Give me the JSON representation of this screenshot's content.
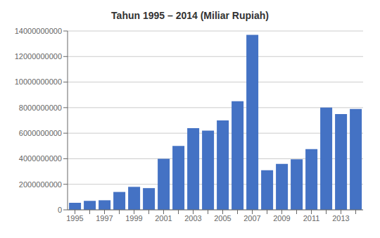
{
  "chart_data": {
    "type": "bar",
    "title": "Tahun 1995 – 2014 (Miliar Rupiah)",
    "categories": [
      "1995",
      null,
      "1997",
      null,
      "1999",
      null,
      "2001",
      null,
      "2003",
      null,
      "2005",
      null,
      "2007",
      null,
      "2009",
      null,
      "2011",
      null,
      "2013",
      null
    ],
    "values": [
      550000000,
      700000000,
      750000000,
      1400000000,
      1800000000,
      1700000000,
      4000000000,
      5000000000,
      6400000000,
      6200000000,
      7000000000,
      8500000000,
      13700000000,
      3100000000,
      3600000000,
      3950000000,
      4750000000,
      8000000000,
      7500000000,
      7900000000
    ],
    "color": "#4472C4",
    "ylim": [
      0,
      14000000000
    ],
    "yticks": [
      0,
      2000000000,
      4000000000,
      6000000000,
      8000000000,
      10000000000,
      12000000000,
      14000000000
    ],
    "grid": true
  }
}
